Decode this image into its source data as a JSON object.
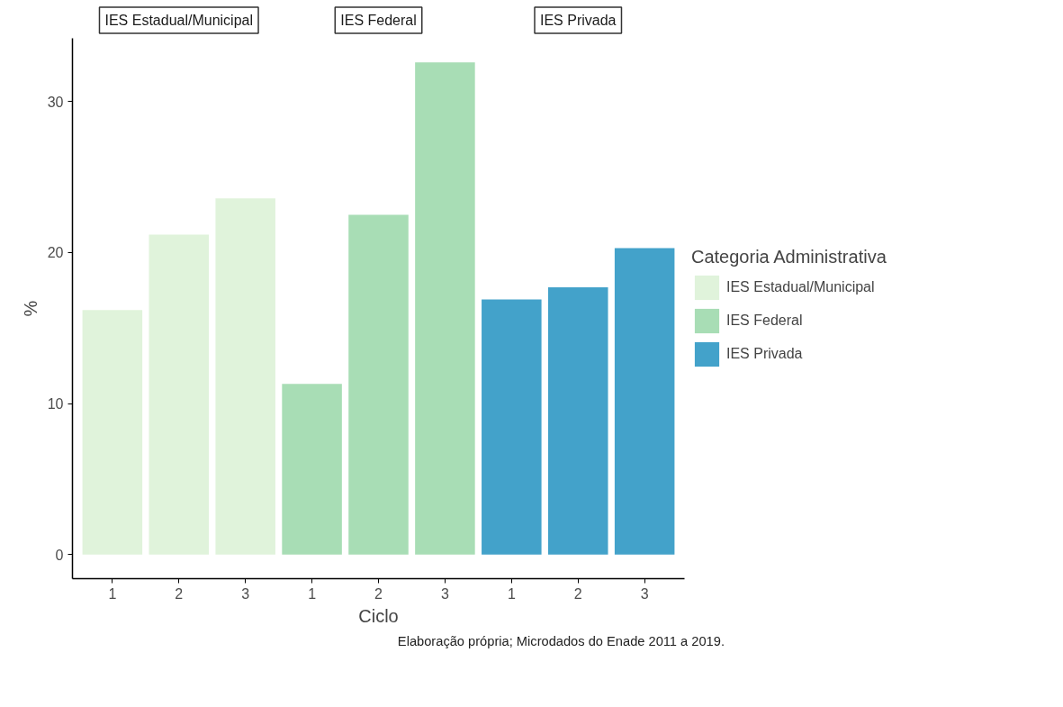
{
  "chart_data": {
    "type": "bar",
    "categories": [
      "1",
      "2",
      "3",
      "1",
      "2",
      "3",
      "1",
      "2",
      "3"
    ],
    "xlabel": "Ciclo",
    "ylabel": "%",
    "ylim": [
      -1.6,
      34.2
    ],
    "yticks": [
      0,
      10,
      20,
      30
    ],
    "grid": false,
    "legend": "right",
    "legend_title": "Categoria Administrativa",
    "annotations": [
      "IES Estadual/Municipal",
      "IES Federal",
      "IES Privada",
      "Elaboração própria; Microdados do Enade 2011 a 2019."
    ],
    "series": [
      {
        "name": "IES Estadual/Municipal",
        "color": "#e0f3db",
        "values": [
          16.2,
          21.2,
          23.6,
          null,
          null,
          null,
          null,
          null,
          null
        ]
      },
      {
        "name": "IES Federal",
        "color": "#a8ddb5",
        "values": [
          null,
          null,
          null,
          11.3,
          22.5,
          32.6,
          null,
          null,
          null
        ]
      },
      {
        "name": "IES Privada",
        "color": "#43a2ca",
        "values": [
          null,
          null,
          null,
          null,
          null,
          null,
          16.9,
          17.7,
          20.3
        ]
      }
    ]
  }
}
